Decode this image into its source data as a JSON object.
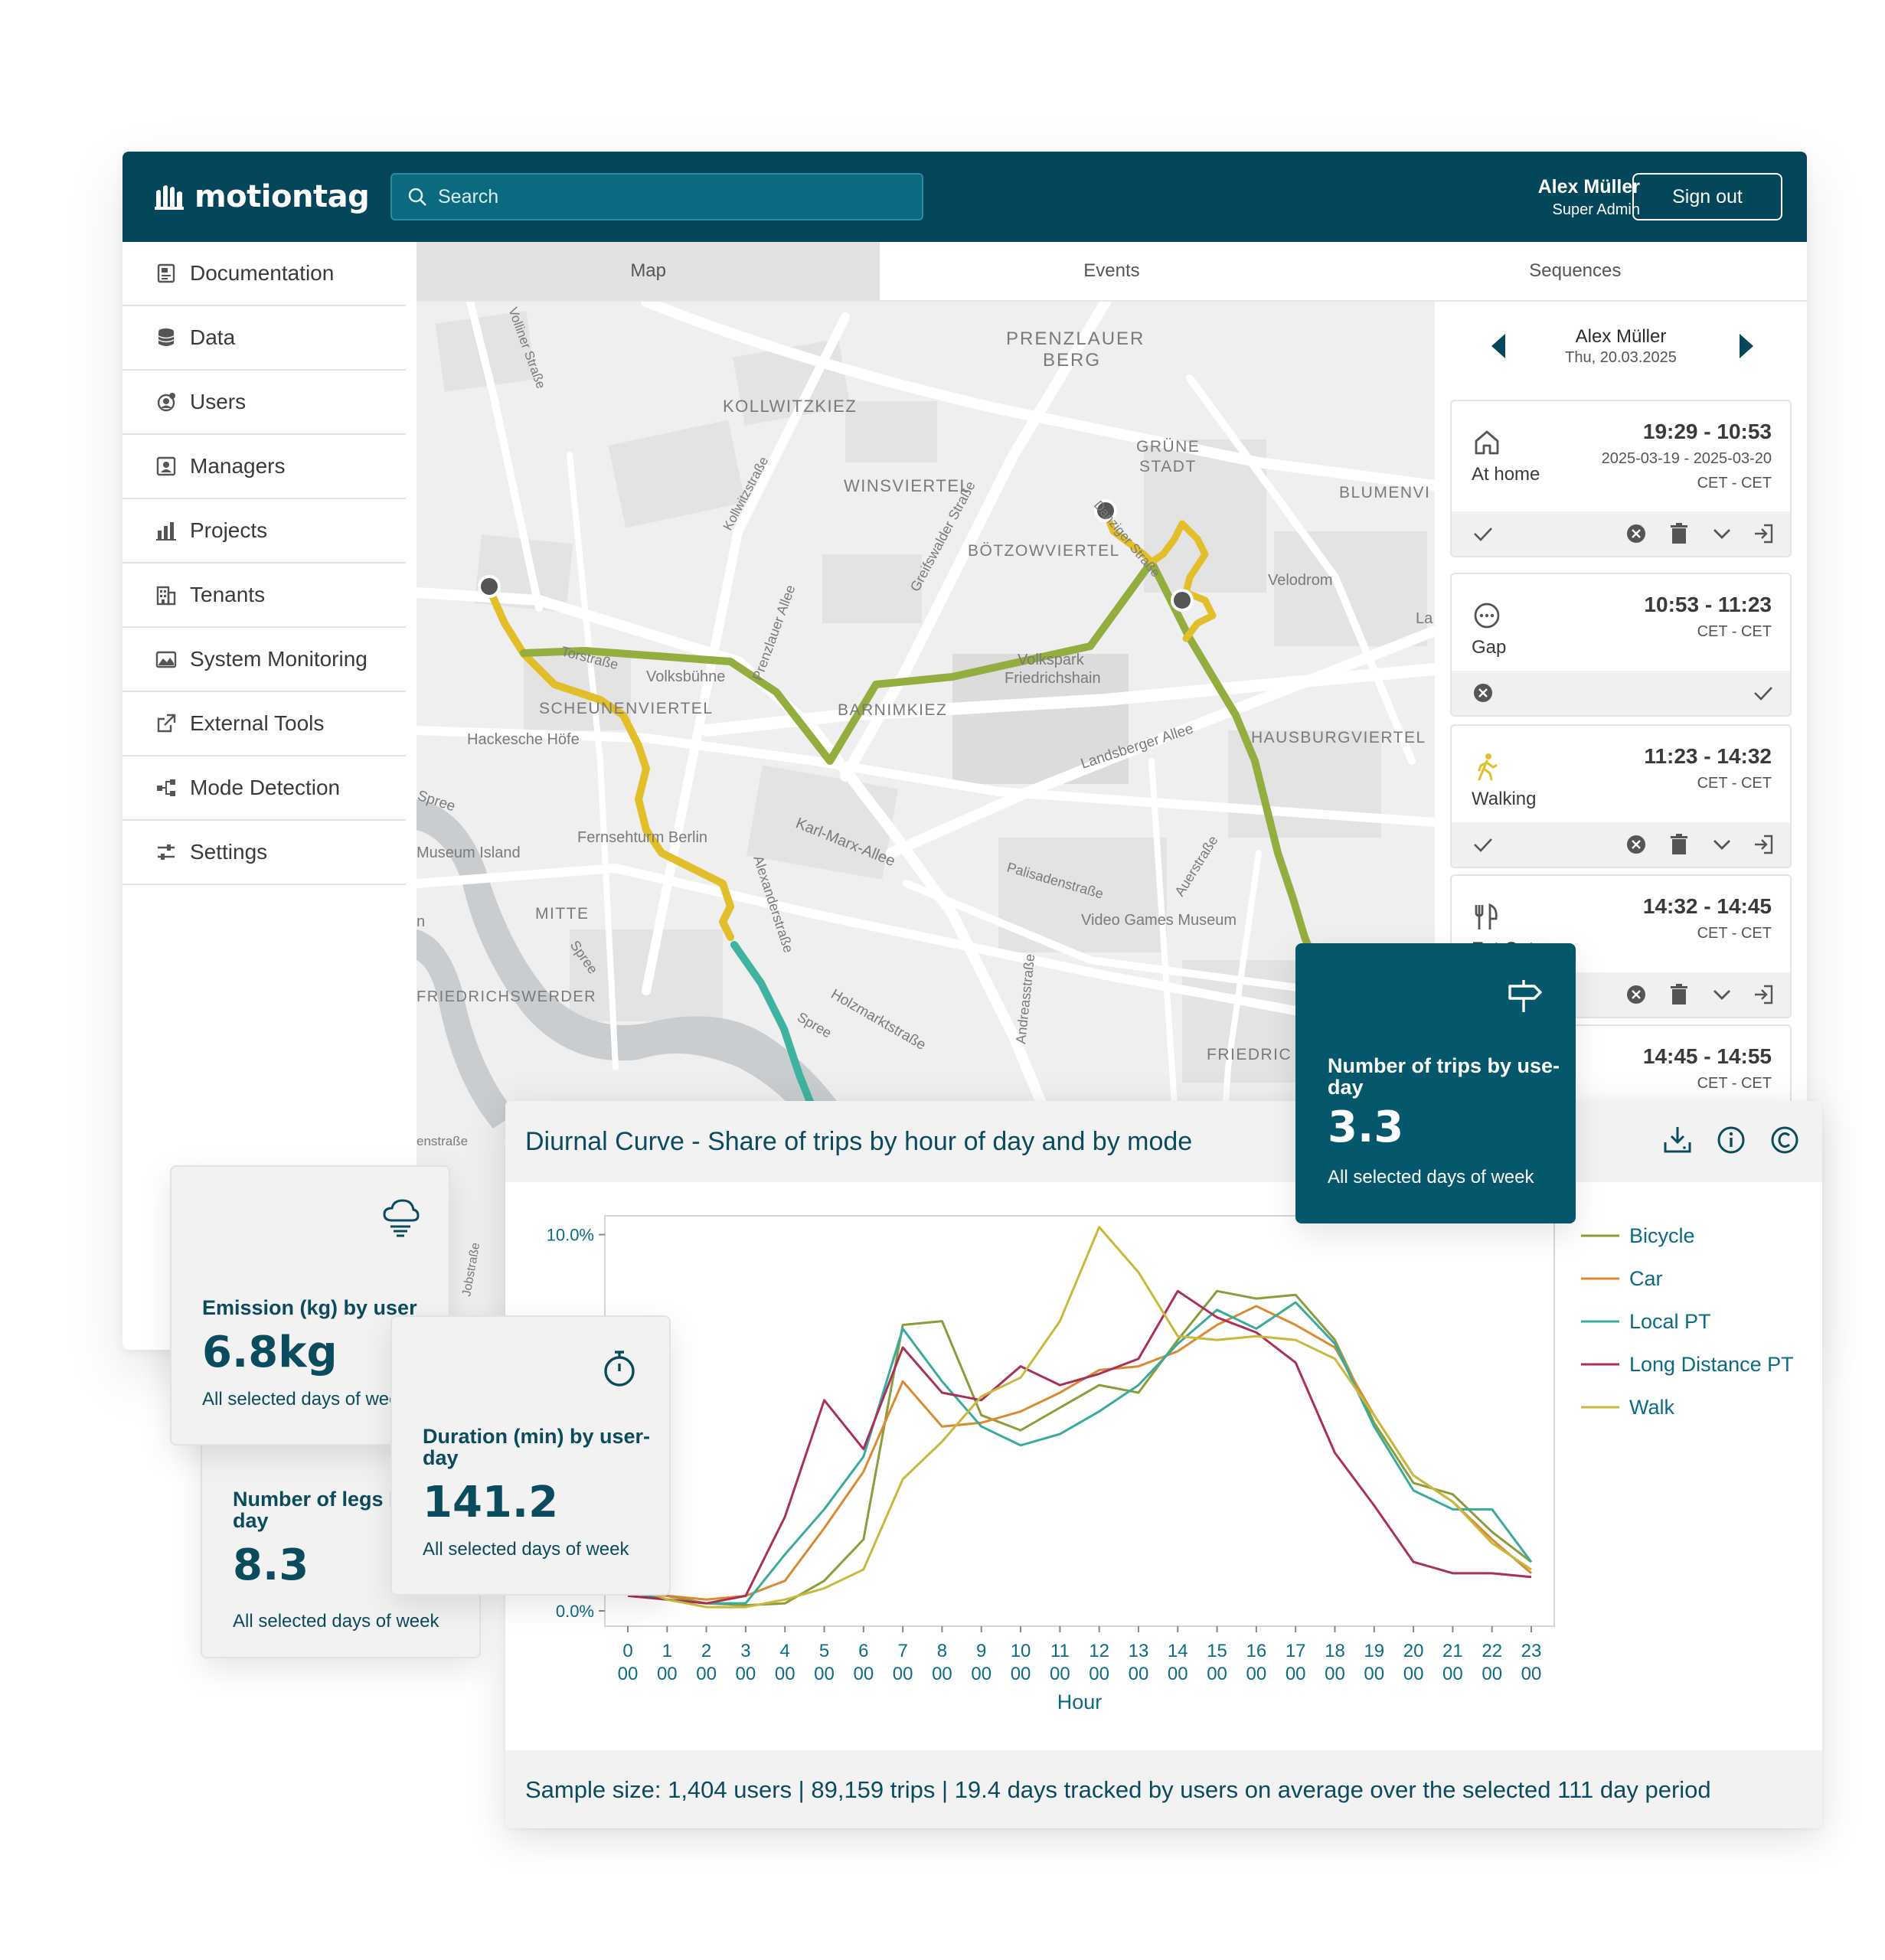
{
  "app": {
    "logo_text": "motiontag",
    "search_placeholder": "Search",
    "user_name": "Alex Müller",
    "user_role": "Super Admin",
    "sign_out_label": "Sign out"
  },
  "sidebar": {
    "items": [
      {
        "label": "Documentation",
        "icon": "documentation-icon"
      },
      {
        "label": "Data",
        "icon": "database-icon"
      },
      {
        "label": "Users",
        "icon": "users-icon"
      },
      {
        "label": "Managers",
        "icon": "managers-icon"
      },
      {
        "label": "Projects",
        "icon": "bar-chart-icon"
      },
      {
        "label": "Tenants",
        "icon": "building-icon"
      },
      {
        "label": "System Monitoring",
        "icon": "monitoring-icon"
      },
      {
        "label": "External Tools",
        "icon": "external-link-icon"
      },
      {
        "label": "Mode Detection",
        "icon": "mode-detection-icon"
      },
      {
        "label": "Settings",
        "icon": "sliders-icon"
      }
    ]
  },
  "tabs": [
    {
      "label": "Map",
      "active": true
    },
    {
      "label": "Events",
      "active": false
    },
    {
      "label": "Sequences",
      "active": false
    }
  ],
  "map_labels": {
    "prenzlauer": "PRENZLAUER",
    "berg": "BERG",
    "kollwitzkiez": "KOLLWITZKIEZ",
    "winsviertel": "WINSVIERTEL",
    "gruene": "GRÜNE",
    "stadt": "STADT",
    "blumenvi": "BLUMENVI",
    "boetzowviertel": "BÖTZOWVIERTEL",
    "velodrom": "Velodrom",
    "volkspark": "Volkspark",
    "friedrichshain": "Friedrichshain",
    "volksbuehne": "Volksbühne",
    "scheunenviertel": "SCHEUNENVIERTEL",
    "barnimkiez": "BARNIMKIEZ",
    "hackesche": "Hackesche Höfe",
    "landsberger": "Landsberger Allee",
    "hausburgviertel": "HAUSBURGVIERTEL",
    "spree1": "Spree",
    "museum": "Museum Island",
    "fernsehturm": "Fernsehturm Berlin",
    "karlmarx": "Karl-Marx-Allee",
    "palisaden": "Palisadenstraße",
    "auerstr": "Auerstraße",
    "mitte": "MITTE",
    "videogames": "Video Games Museum",
    "friedrichswerder": "FRIEDRICHSWERDER",
    "spree2": "Spree",
    "alexander": "Alexanderstraße",
    "andreas": "Andreasstraße",
    "holzmarkt": "Holzmarktstraße",
    "spree3": "Spree",
    "friedric": "FRIEDRIC",
    "torstrasse": "Torstraße",
    "prenzlauer_allee": "Prenzlauer Allee",
    "greifswalder": "Greifswalder Straße",
    "danziger": "Danziger Straße",
    "kollwitz_str": "Kollwitzstraße",
    "vollinerstr": "Volliner Straße",
    "enstrasse": "enstraße",
    "jobstrasse": "Jobstraße",
    "la": "La",
    "n": "n"
  },
  "timeline": {
    "user": "Alex Müller",
    "date": "Thu, 20.03.2025",
    "cards": [
      {
        "label": "At home",
        "time": "19:29 - 10:53",
        "dates": "2025-03-19 - 2025-03-20",
        "tz": "CET - CET",
        "icon": "home-icon"
      },
      {
        "label": "Gap",
        "time": "10:53 - 11:23",
        "dates": "",
        "tz": "CET - CET",
        "icon": "gap-icon"
      },
      {
        "label": "Walking",
        "time": "11:23 - 14:32",
        "dates": "",
        "tz": "CET - CET",
        "icon": "walking-icon"
      },
      {
        "label": "Eat Out",
        "time": "14:32 - 14:45",
        "dates": "",
        "tz": "CET - CET",
        "icon": "cutlery-icon"
      },
      {
        "label": "",
        "time": "14:45 - 14:55",
        "dates": "",
        "tz": "CET - CET",
        "icon": ""
      }
    ]
  },
  "chart_panel": {
    "title": "Diurnal Curve - Share of trips by hour of day and by mode",
    "sample_text": "Sample size: 1,404 users | 89,159 trips | 19.4 days tracked by users on average over the selected 111 day period"
  },
  "chart_data": {
    "type": "line",
    "xlabel": "Hour",
    "ylabel": "",
    "ylim": [
      0,
      10.5
    ],
    "yticks": [
      {
        "value": 0,
        "label": "0.0%"
      },
      {
        "value": 10,
        "label": "10.0%"
      }
    ],
    "x": [
      0,
      1,
      2,
      3,
      4,
      5,
      6,
      7,
      8,
      9,
      10,
      11,
      12,
      13,
      14,
      15,
      16,
      17,
      18,
      19,
      20,
      21,
      22,
      23
    ],
    "x_tick_top": [
      "0",
      "1",
      "2",
      "3",
      "4",
      "5",
      "6",
      "7",
      "8",
      "9",
      "10",
      "11",
      "12",
      "13",
      "14",
      "15",
      "16",
      "17",
      "18",
      "19",
      "20",
      "21",
      "22",
      "23"
    ],
    "x_tick_bottom": [
      "00",
      "00",
      "00",
      "00",
      "00",
      "00",
      "00",
      "00",
      "00",
      "00",
      "00",
      "00",
      "00",
      "00",
      "00",
      "00",
      "00",
      "00",
      "00",
      "00",
      "00",
      "00",
      "00",
      "00"
    ],
    "legend_position": "right",
    "series": [
      {
        "name": "Bicycle",
        "color": "#8d9c3a",
        "values": [
          0.6,
          0.4,
          0.2,
          0.15,
          0.2,
          0.8,
          1.9,
          7.6,
          7.7,
          5.2,
          4.8,
          5.4,
          6.0,
          5.8,
          7.2,
          8.5,
          8.3,
          8.4,
          7.2,
          5.0,
          3.4,
          3.1,
          2.1,
          1.3
        ]
      },
      {
        "name": "Car",
        "color": "#d98a32",
        "values": [
          0.6,
          0.4,
          0.3,
          0.4,
          0.8,
          2.2,
          3.7,
          6.1,
          4.9,
          5.0,
          5.3,
          5.8,
          6.4,
          6.5,
          6.9,
          7.6,
          8.1,
          7.6,
          7.0,
          5.2,
          3.6,
          2.9,
          1.9,
          1.0
        ]
      },
      {
        "name": "Local PT",
        "color": "#3aaa9f",
        "values": [
          0.5,
          0.3,
          0.2,
          0.2,
          1.5,
          2.7,
          4.1,
          7.5,
          6.1,
          4.9,
          4.4,
          4.7,
          5.3,
          6.0,
          7.1,
          8.0,
          7.5,
          8.2,
          7.1,
          4.9,
          3.2,
          2.7,
          2.7,
          1.3
        ]
      },
      {
        "name": "Long Distance PT",
        "color": "#a93158",
        "values": [
          0.4,
          0.3,
          0.2,
          0.4,
          2.5,
          5.6,
          4.3,
          7.0,
          5.8,
          5.6,
          6.5,
          6.0,
          6.3,
          6.7,
          8.5,
          7.8,
          7.4,
          6.6,
          4.2,
          2.8,
          1.3,
          1.0,
          1.0,
          0.9
        ]
      },
      {
        "name": "Walk",
        "color": "#c8b93c",
        "values": [
          0.7,
          0.3,
          0.1,
          0.1,
          0.3,
          0.6,
          1.1,
          3.5,
          4.5,
          5.7,
          6.2,
          7.7,
          10.2,
          9.0,
          7.3,
          7.2,
          7.3,
          7.2,
          6.7,
          5.2,
          3.6,
          2.9,
          1.8,
          1.1
        ]
      }
    ]
  },
  "kpis": {
    "trips": {
      "title": "Number of trips by use-day",
      "value": "3.3",
      "sub": "All selected days of week",
      "icon": "signpost-icon"
    },
    "emission": {
      "title": "Emission (kg) by user",
      "value": "6.8kg",
      "sub": "All selected days of week",
      "icon": "cloud-emission-icon"
    },
    "legs": {
      "title": "Number of legs by user-day",
      "value": "8.3",
      "sub": "All selected days of week",
      "icon": ""
    },
    "duration": {
      "title": "Duration (min) by user-day",
      "value": "141.2",
      "sub": "All selected days of week",
      "icon": "stopwatch-icon"
    }
  },
  "colors": {
    "brand": "#05475a",
    "kpi_dark": "#05586b",
    "route_green": "#93ad3f",
    "route_yellow": "#e2bf2a",
    "route_teal": "#3fb3a0"
  }
}
